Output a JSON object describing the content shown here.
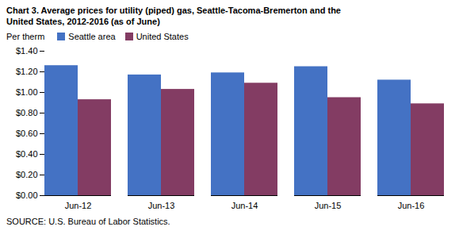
{
  "chart_data": {
    "type": "bar",
    "title": "Chart 3. Average prices for utility (piped) gas, Seattle-Tacoma-Bremerton and the\nUnited States, 2012-2016  (as of June)",
    "ylabel": "Per therm",
    "source": "SOURCE: U.S. Bureau of Labor Statistics.",
    "categories": [
      "Jun-12",
      "Jun-13",
      "Jun-14",
      "Jun-15",
      "Jun-16"
    ],
    "series": [
      {
        "name": "Seattle area",
        "color": "#4472C4",
        "values": [
          1.26,
          1.17,
          1.19,
          1.25,
          1.12
        ]
      },
      {
        "name": "United States",
        "color": "#833C63",
        "values": [
          0.93,
          1.03,
          1.09,
          0.95,
          0.89
        ]
      }
    ],
    "ylim": [
      0,
      1.4
    ],
    "yticks": [
      {
        "value": 0,
        "label": "$0.00"
      },
      {
        "value": 0.2,
        "label": "$0.20"
      },
      {
        "value": 0.4,
        "label": "$0.40"
      },
      {
        "value": 0.6,
        "label": "$0.60"
      },
      {
        "value": 0.8,
        "label": "$0.80"
      },
      {
        "value": 1.0,
        "label": "$1.00"
      },
      {
        "value": 1.2,
        "label": "$1.20"
      },
      {
        "value": 1.4,
        "label": "$1.40"
      }
    ],
    "grid": false,
    "legend": "upper left"
  }
}
